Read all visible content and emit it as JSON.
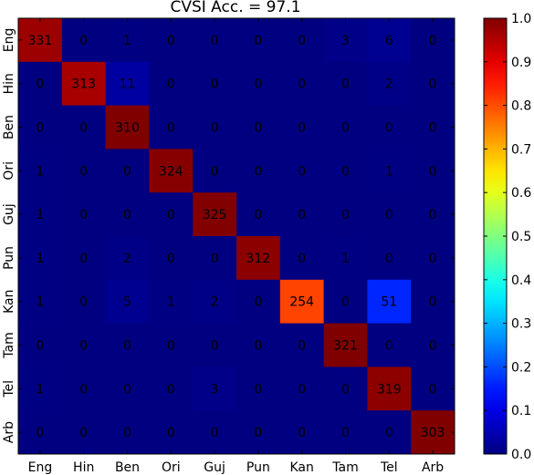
{
  "chart_data": {
    "type": "heatmap",
    "title": "CVSI Acc. = 97.1",
    "x_categories": [
      "Eng",
      "Hin",
      "Ben",
      "Ori",
      "Guj",
      "Pun",
      "Kan",
      "Tam",
      "Tel",
      "Arb"
    ],
    "y_categories": [
      "Eng",
      "Hin",
      "Ben",
      "Ori",
      "Guj",
      "Pun",
      "Kan",
      "Tam",
      "Tel",
      "Arb"
    ],
    "values": [
      [
        331,
        0,
        1,
        0,
        0,
        0,
        0,
        3,
        6,
        0
      ],
      [
        0,
        313,
        11,
        0,
        0,
        0,
        0,
        0,
        2,
        0
      ],
      [
        0,
        0,
        310,
        0,
        0,
        0,
        0,
        0,
        0,
        0
      ],
      [
        1,
        0,
        0,
        324,
        0,
        0,
        0,
        0,
        1,
        0
      ],
      [
        1,
        0,
        0,
        0,
        325,
        0,
        0,
        0,
        0,
        0
      ],
      [
        1,
        0,
        2,
        0,
        0,
        312,
        0,
        1,
        0,
        0
      ],
      [
        1,
        0,
        5,
        1,
        2,
        0,
        254,
        0,
        51,
        0
      ],
      [
        0,
        0,
        0,
        0,
        0,
        0,
        0,
        321,
        0,
        0
      ],
      [
        1,
        0,
        0,
        0,
        3,
        0,
        0,
        0,
        319,
        0
      ],
      [
        0,
        0,
        0,
        0,
        0,
        0,
        0,
        0,
        0,
        303
      ]
    ],
    "normalization": "row",
    "colormap": "jet",
    "colorbar": {
      "range": [
        0,
        1.0
      ],
      "ticks": [
        "0.0",
        "0.1",
        "0.2",
        "0.3",
        "0.4",
        "0.5",
        "0.6",
        "0.7",
        "0.8",
        "0.9",
        "1.0"
      ]
    },
    "grid": false
  }
}
